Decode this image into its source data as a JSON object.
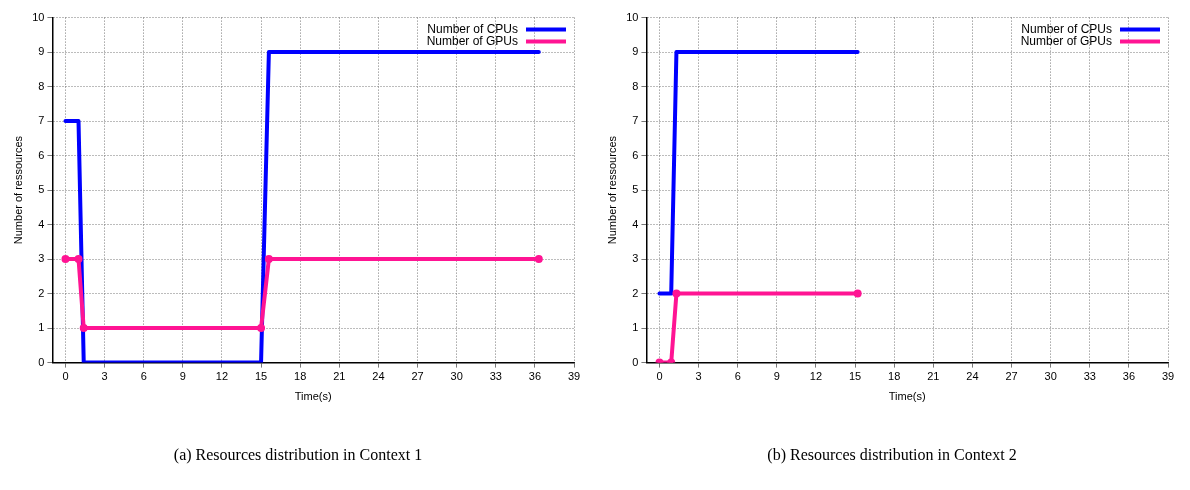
{
  "chart_data": [
    {
      "type": "line",
      "xlabel": "Time(s)",
      "ylabel": "Number of ressources",
      "annotations": [
        "(a) Resources distribution in Context 1"
      ],
      "xlim": [
        -1,
        39
      ],
      "xticks": [
        0,
        3,
        6,
        9,
        12,
        15,
        18,
        21,
        24,
        27,
        30,
        33,
        36,
        39
      ],
      "ylim": [
        0,
        10
      ],
      "yticks": [
        0,
        1,
        2,
        3,
        4,
        5,
        6,
        7,
        8,
        9,
        10
      ],
      "grid": true,
      "legend": "top right",
      "line_style": "solid",
      "series": [
        {
          "name": "Number of CPUs",
          "color": "#0000ff",
          "marker": "none",
          "x": [
            0,
            1,
            1.4,
            15,
            15.6,
            36.3
          ],
          "values": [
            7,
            7,
            0,
            0,
            9,
            9
          ]
        },
        {
          "name": "Number of GPUs",
          "color": "#ff1493",
          "marker": "circle",
          "x": [
            0,
            1,
            1.4,
            15,
            15.6,
            36.3
          ],
          "values": [
            3,
            3,
            1,
            1,
            3,
            3
          ]
        }
      ]
    },
    {
      "type": "line",
      "xlabel": "Time(s)",
      "ylabel": "Number of ressources",
      "annotations": [
        "(b) Resources distribution in Context 2"
      ],
      "xlim": [
        -1,
        39
      ],
      "xticks": [
        0,
        3,
        6,
        9,
        12,
        15,
        18,
        21,
        24,
        27,
        30,
        33,
        36,
        39
      ],
      "ylim": [
        0,
        10
      ],
      "yticks": [
        0,
        1,
        2,
        3,
        4,
        5,
        6,
        7,
        8,
        9,
        10
      ],
      "grid": true,
      "legend": "top right",
      "line_style": "solid",
      "series": [
        {
          "name": "Number of CPUs",
          "color": "#0000ff",
          "marker": "none",
          "x": [
            0,
            0.9,
            1.3,
            15.2
          ],
          "values": [
            2,
            2,
            9,
            9
          ]
        },
        {
          "name": "Number of GPUs",
          "color": "#ff1493",
          "marker": "circle",
          "x": [
            0,
            0.9,
            1.3,
            15.2
          ],
          "values": [
            0,
            0,
            2,
            2
          ]
        }
      ]
    }
  ]
}
